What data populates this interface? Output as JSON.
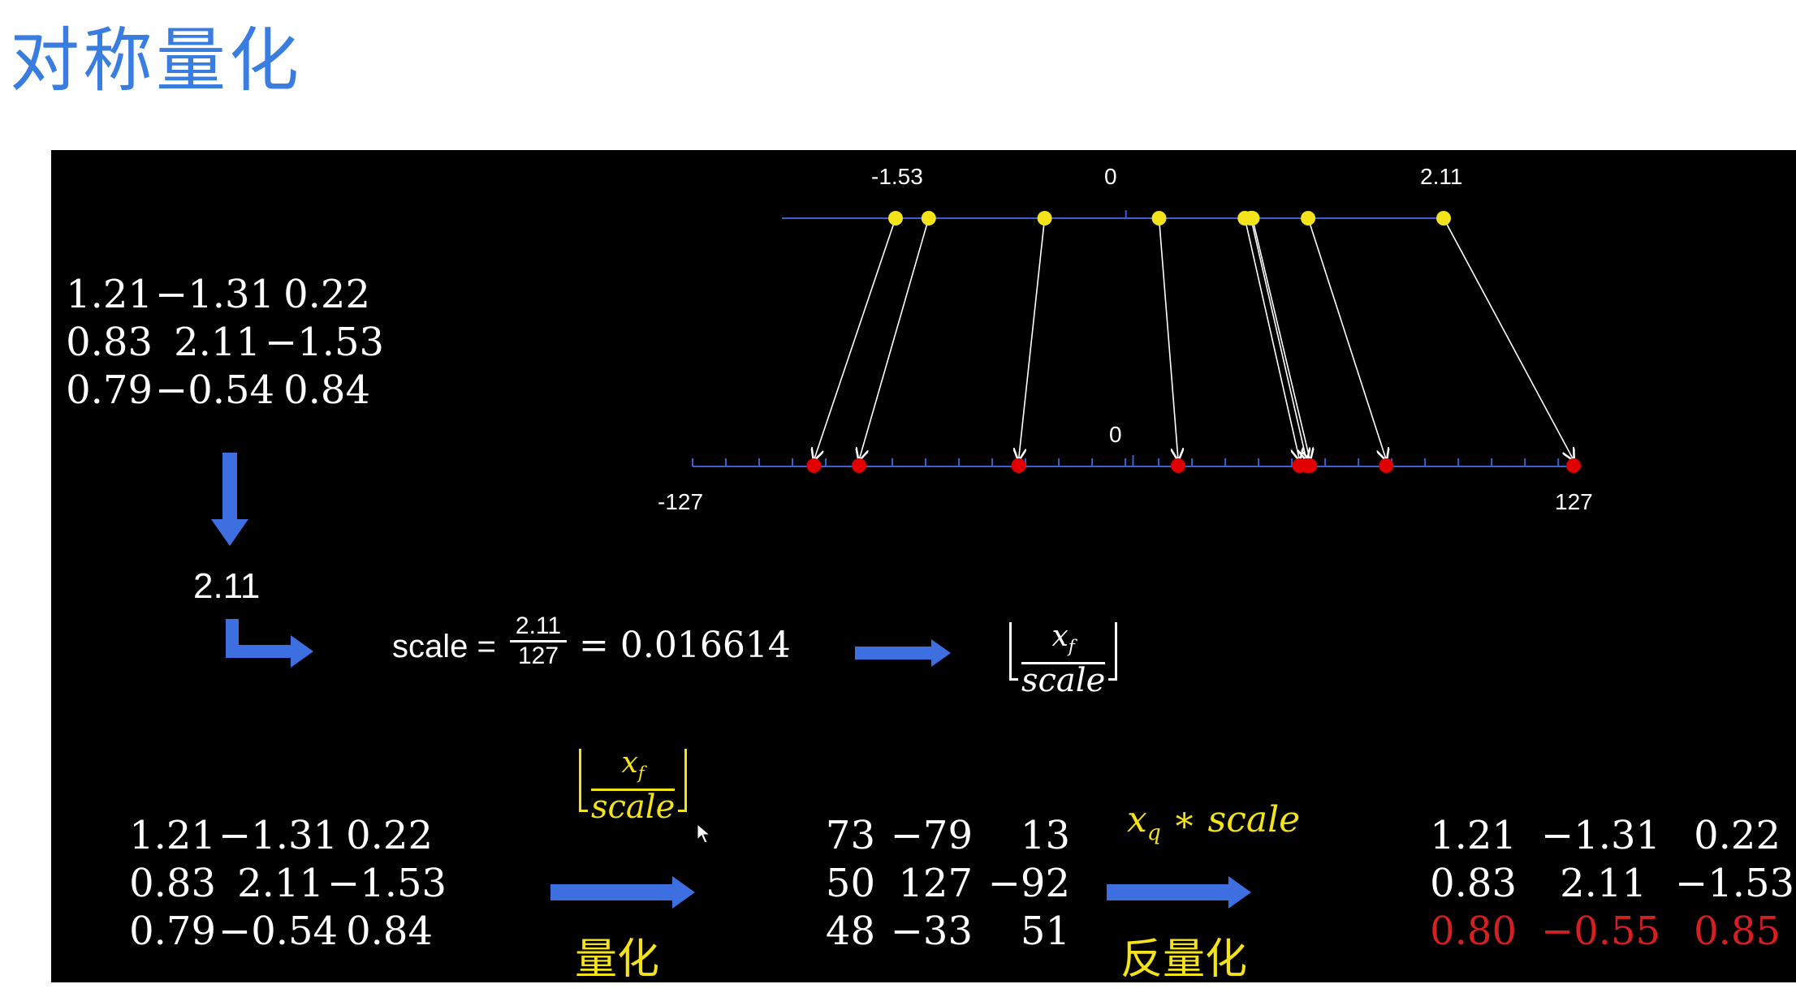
{
  "title": "对称量化",
  "top_matrix": [
    [
      "1.21",
      "−1.31",
      "0.22"
    ],
    [
      "0.83",
      "2.11",
      "−1.53"
    ],
    [
      "0.79",
      "−0.54",
      "0.84"
    ]
  ],
  "max_abs": "2.11",
  "scale_eq": {
    "lhs": "scale =",
    "num": "2.11",
    "den": "127",
    "rhs": "= 0.016614"
  },
  "quant_formula": {
    "num": "x_f",
    "den": "scale"
  },
  "numberline_top": {
    "min_label": "-1.53",
    "zero_label": "0",
    "max_label": "2.11"
  },
  "numberline_bottom": {
    "min_label": "-127",
    "zero_label": "0",
    "max_label": "127"
  },
  "bottom_left_matrix": [
    [
      "1.21",
      "−1.31",
      "0.22"
    ],
    [
      "0.83",
      "2.11",
      "−1.53"
    ],
    [
      "0.79",
      "−0.54",
      "0.84"
    ]
  ],
  "quantize_label": "量化",
  "quantized_matrix": [
    [
      "73",
      "−79",
      "13"
    ],
    [
      "50",
      "127",
      "−92"
    ],
    [
      "48",
      "−33",
      "51"
    ]
  ],
  "dequant_formula": "x_q * scale",
  "dequantize_label": "反量化",
  "dequantized_matrix": [
    [
      "1.21",
      "−1.31",
      "0.22"
    ],
    [
      "0.83",
      "2.11",
      "−1.53"
    ],
    [
      "0.80",
      "−0.55",
      "0.85"
    ]
  ],
  "colors": {
    "title": "#3a7de0",
    "arrow": "#3d6fe0",
    "yellow": "#f4e21a",
    "red": "#d42020",
    "axis": "#3d5fcf"
  },
  "chart_data": {
    "type": "scatter",
    "float_values": [
      -1.53,
      -1.31,
      -0.54,
      0.22,
      0.79,
      0.83,
      0.84,
      1.21,
      2.11
    ],
    "quantized_values": [
      -92,
      -79,
      -33,
      13,
      48,
      50,
      51,
      73,
      127
    ],
    "float_axis_ticks": [
      "-1.53",
      "0",
      "2.11"
    ],
    "int_axis_ticks": [
      "-127",
      "0",
      "127"
    ]
  }
}
